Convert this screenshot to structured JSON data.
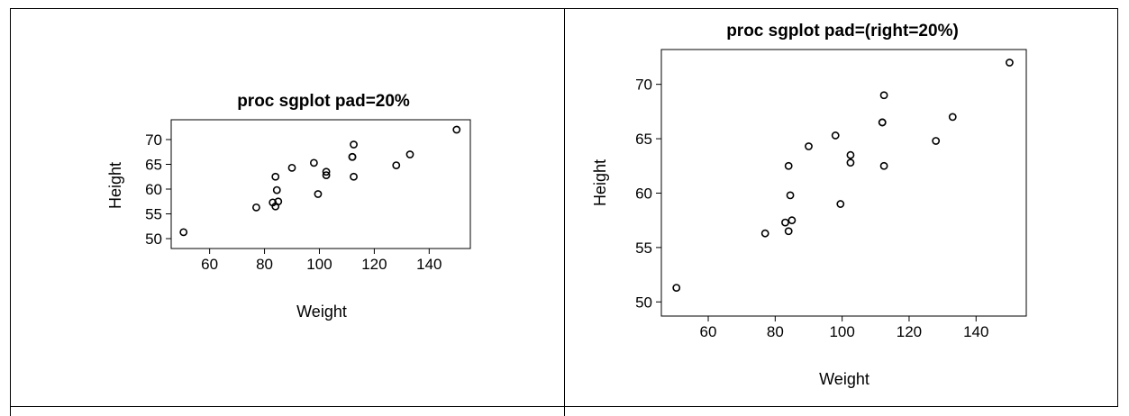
{
  "chart_data": [
    {
      "type": "scatter",
      "title": "proc sgplot pad=20%",
      "xlabel": "Weight",
      "ylabel": "Height",
      "xlim": [
        46,
        155
      ],
      "ylim": [
        48,
        74
      ],
      "xticks": [
        60,
        80,
        100,
        120,
        140
      ],
      "yticks": [
        50,
        55,
        60,
        65,
        70
      ],
      "xtick_labels": [
        "60",
        "80",
        "100",
        "120",
        "140"
      ],
      "ytick_labels": [
        "50",
        "55",
        "60",
        "65",
        "70"
      ],
      "grid": false,
      "marker": "hollow-circle",
      "points": [
        {
          "x": 50.5,
          "y": 51.3
        },
        {
          "x": 77.0,
          "y": 56.3
        },
        {
          "x": 83.0,
          "y": 57.3
        },
        {
          "x": 84.0,
          "y": 56.5
        },
        {
          "x": 85.0,
          "y": 57.5
        },
        {
          "x": 84.0,
          "y": 62.5
        },
        {
          "x": 84.5,
          "y": 59.8
        },
        {
          "x": 90.0,
          "y": 64.3
        },
        {
          "x": 98.0,
          "y": 65.3
        },
        {
          "x": 99.5,
          "y": 59.0
        },
        {
          "x": 102.5,
          "y": 63.5
        },
        {
          "x": 102.5,
          "y": 62.8
        },
        {
          "x": 112.0,
          "y": 66.5
        },
        {
          "x": 112.0,
          "y": 66.5
        },
        {
          "x": 112.5,
          "y": 69.0
        },
        {
          "x": 112.5,
          "y": 62.5
        },
        {
          "x": 128.0,
          "y": 64.8
        },
        {
          "x": 133.0,
          "y": 67.0
        },
        {
          "x": 150.0,
          "y": 72.0
        }
      ]
    },
    {
      "type": "scatter",
      "title": "proc sgplot pad=(right=20%)",
      "xlabel": "Weight",
      "ylabel": "Height",
      "xlim": [
        46,
        155
      ],
      "ylim": [
        48.7,
        73.2
      ],
      "xticks": [
        60,
        80,
        100,
        120,
        140
      ],
      "yticks": [
        50,
        55,
        60,
        65,
        70
      ],
      "xtick_labels": [
        "60",
        "80",
        "100",
        "120",
        "140"
      ],
      "ytick_labels": [
        "50",
        "55",
        "60",
        "65",
        "70"
      ],
      "grid": false,
      "marker": "hollow-circle",
      "points": [
        {
          "x": 50.5,
          "y": 51.3
        },
        {
          "x": 77.0,
          "y": 56.3
        },
        {
          "x": 83.0,
          "y": 57.3
        },
        {
          "x": 84.0,
          "y": 56.5
        },
        {
          "x": 85.0,
          "y": 57.5
        },
        {
          "x": 84.0,
          "y": 62.5
        },
        {
          "x": 84.5,
          "y": 59.8
        },
        {
          "x": 90.0,
          "y": 64.3
        },
        {
          "x": 98.0,
          "y": 65.3
        },
        {
          "x": 99.5,
          "y": 59.0
        },
        {
          "x": 102.5,
          "y": 63.5
        },
        {
          "x": 102.5,
          "y": 62.8
        },
        {
          "x": 112.0,
          "y": 66.5
        },
        {
          "x": 112.0,
          "y": 66.5
        },
        {
          "x": 112.5,
          "y": 69.0
        },
        {
          "x": 112.5,
          "y": 62.5
        },
        {
          "x": 128.0,
          "y": 64.8
        },
        {
          "x": 133.0,
          "y": 67.0
        },
        {
          "x": 150.0,
          "y": 72.0
        }
      ]
    }
  ]
}
